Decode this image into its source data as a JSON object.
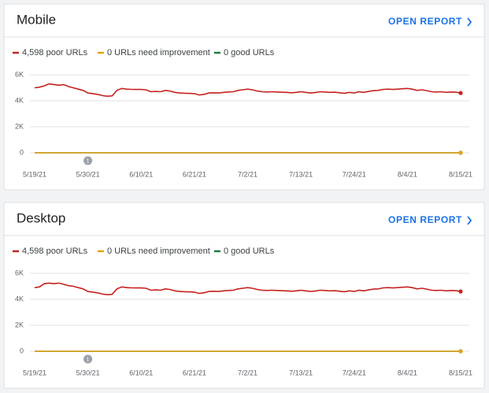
{
  "chart_data": [
    {
      "type": "line",
      "title": "Mobile",
      "link_text": "OPEN REPORT",
      "categories": [
        "5/19/21",
        null,
        null,
        null,
        null,
        null,
        null,
        null,
        null,
        null,
        null,
        "5/30/21",
        null,
        null,
        null,
        null,
        null,
        null,
        null,
        null,
        null,
        null,
        "6/10/21",
        null,
        null,
        null,
        null,
        null,
        null,
        null,
        null,
        null,
        null,
        "6/21/21",
        null,
        null,
        null,
        null,
        null,
        null,
        null,
        null,
        null,
        null,
        "7/2/21",
        null,
        null,
        null,
        null,
        null,
        null,
        null,
        null,
        null,
        null,
        "7/13/21",
        null,
        null,
        null,
        null,
        null,
        null,
        null,
        null,
        null,
        null,
        "7/24/21",
        null,
        null,
        null,
        null,
        null,
        null,
        null,
        null,
        null,
        null,
        "8/4/21",
        null,
        null,
        null,
        null,
        null,
        null,
        null,
        null,
        null,
        null,
        "8/15/21"
      ],
      "series": [
        {
          "name": "4,598 poor URLs",
          "color": "#c5221f",
          "values": [
            5000,
            5050,
            5150,
            5300,
            5250,
            5200,
            5250,
            5100,
            5000,
            4900,
            4800,
            4600,
            4550,
            4500,
            4400,
            4350,
            4380,
            4800,
            4950,
            4900,
            4880,
            4870,
            4870,
            4850,
            4700,
            4720,
            4700,
            4800,
            4750,
            4650,
            4600,
            4580,
            4570,
            4550,
            4450,
            4500,
            4600,
            4620,
            4600,
            4650,
            4680,
            4700,
            4800,
            4850,
            4900,
            4850,
            4750,
            4700,
            4680,
            4700,
            4680,
            4660,
            4650,
            4620,
            4650,
            4700,
            4650,
            4600,
            4640,
            4700,
            4680,
            4650,
            4660,
            4620,
            4580,
            4650,
            4600,
            4700,
            4650,
            4720,
            4780,
            4800,
            4880,
            4900,
            4870,
            4900,
            4930,
            4950,
            4900,
            4800,
            4850,
            4780,
            4700,
            4680,
            4700,
            4650,
            4680,
            4660,
            4598
          ]
        },
        {
          "name": "0 URLs need improvement",
          "color": "#e8a10f",
          "values": [
            0,
            0,
            0,
            0,
            0,
            0,
            0,
            0,
            0,
            0,
            0,
            0,
            0,
            0,
            0,
            0,
            0,
            0,
            0,
            0,
            0,
            0,
            0,
            0,
            0,
            0,
            0,
            0,
            0,
            0,
            0,
            0,
            0,
            0,
            0,
            0,
            0,
            0,
            0,
            0,
            0,
            0,
            0,
            0,
            0,
            0,
            0,
            0,
            0,
            0,
            0,
            0,
            0,
            0,
            0,
            0,
            0,
            0,
            0,
            0,
            0,
            0,
            0,
            0,
            0,
            0,
            0,
            0,
            0,
            0,
            0,
            0,
            0,
            0,
            0,
            0,
            0,
            0,
            0,
            0,
            0,
            0,
            0,
            0,
            0,
            0,
            0,
            0,
            0
          ]
        },
        {
          "name": "0 good URLs",
          "color": "#188038",
          "values": [
            0,
            0,
            0,
            0,
            0,
            0,
            0,
            0,
            0,
            0,
            0,
            0,
            0,
            0,
            0,
            0,
            0,
            0,
            0,
            0,
            0,
            0,
            0,
            0,
            0,
            0,
            0,
            0,
            0,
            0,
            0,
            0,
            0,
            0,
            0,
            0,
            0,
            0,
            0,
            0,
            0,
            0,
            0,
            0,
            0,
            0,
            0,
            0,
            0,
            0,
            0,
            0,
            0,
            0,
            0,
            0,
            0,
            0,
            0,
            0,
            0,
            0,
            0,
            0,
            0,
            0,
            0,
            0,
            0,
            0,
            0,
            0,
            0,
            0,
            0,
            0,
            0,
            0,
            0,
            0,
            0,
            0,
            0,
            0,
            0,
            0,
            0,
            0,
            0
          ]
        }
      ],
      "ylim": [
        0,
        6000
      ],
      "yticks": [
        0,
        {
          "value": 2000,
          "label": "2K"
        },
        {
          "value": 4000,
          "label": "4K"
        },
        {
          "value": 6000,
          "label": "6K"
        }
      ],
      "grid": true,
      "annotations": [
        {
          "x": "5/30/21",
          "label": "1"
        }
      ]
    },
    {
      "type": "line",
      "title": "Desktop",
      "link_text": "OPEN REPORT",
      "categories": [
        "5/19/21",
        null,
        null,
        null,
        null,
        null,
        null,
        null,
        null,
        null,
        null,
        "5/30/21",
        null,
        null,
        null,
        null,
        null,
        null,
        null,
        null,
        null,
        null,
        "6/10/21",
        null,
        null,
        null,
        null,
        null,
        null,
        null,
        null,
        null,
        null,
        "6/21/21",
        null,
        null,
        null,
        null,
        null,
        null,
        null,
        null,
        null,
        null,
        "7/2/21",
        null,
        null,
        null,
        null,
        null,
        null,
        null,
        null,
        null,
        null,
        "7/13/21",
        null,
        null,
        null,
        null,
        null,
        null,
        null,
        null,
        null,
        null,
        "7/24/21",
        null,
        null,
        null,
        null,
        null,
        null,
        null,
        null,
        null,
        null,
        "8/4/21",
        null,
        null,
        null,
        null,
        null,
        null,
        null,
        null,
        null,
        null,
        "8/15/21"
      ],
      "series": [
        {
          "name": "4,598 poor URLs",
          "color": "#c5221f",
          "values": [
            4900,
            4950,
            5200,
            5250,
            5200,
            5250,
            5150,
            5050,
            5000,
            4900,
            4800,
            4600,
            4550,
            4500,
            4400,
            4350,
            4380,
            4800,
            4950,
            4900,
            4880,
            4870,
            4870,
            4850,
            4700,
            4720,
            4700,
            4800,
            4750,
            4650,
            4600,
            4580,
            4570,
            4550,
            4450,
            4500,
            4600,
            4620,
            4600,
            4650,
            4680,
            4700,
            4800,
            4850,
            4900,
            4850,
            4750,
            4700,
            4680,
            4700,
            4680,
            4660,
            4650,
            4620,
            4650,
            4700,
            4650,
            4600,
            4640,
            4700,
            4680,
            4650,
            4660,
            4620,
            4580,
            4650,
            4600,
            4700,
            4650,
            4720,
            4780,
            4800,
            4880,
            4900,
            4870,
            4900,
            4930,
            4950,
            4900,
            4800,
            4850,
            4780,
            4700,
            4680,
            4700,
            4650,
            4680,
            4660,
            4598
          ]
        },
        {
          "name": "0 URLs need improvement",
          "color": "#e8a10f",
          "values": [
            0,
            0,
            0,
            0,
            0,
            0,
            0,
            0,
            0,
            0,
            0,
            0,
            0,
            0,
            0,
            0,
            0,
            0,
            0,
            0,
            0,
            0,
            0,
            0,
            0,
            0,
            0,
            0,
            0,
            0,
            0,
            0,
            0,
            0,
            0,
            0,
            0,
            0,
            0,
            0,
            0,
            0,
            0,
            0,
            0,
            0,
            0,
            0,
            0,
            0,
            0,
            0,
            0,
            0,
            0,
            0,
            0,
            0,
            0,
            0,
            0,
            0,
            0,
            0,
            0,
            0,
            0,
            0,
            0,
            0,
            0,
            0,
            0,
            0,
            0,
            0,
            0,
            0,
            0,
            0,
            0,
            0,
            0,
            0,
            0,
            0,
            0,
            0,
            0
          ]
        },
        {
          "name": "0 good URLs",
          "color": "#188038",
          "values": [
            0,
            0,
            0,
            0,
            0,
            0,
            0,
            0,
            0,
            0,
            0,
            0,
            0,
            0,
            0,
            0,
            0,
            0,
            0,
            0,
            0,
            0,
            0,
            0,
            0,
            0,
            0,
            0,
            0,
            0,
            0,
            0,
            0,
            0,
            0,
            0,
            0,
            0,
            0,
            0,
            0,
            0,
            0,
            0,
            0,
            0,
            0,
            0,
            0,
            0,
            0,
            0,
            0,
            0,
            0,
            0,
            0,
            0,
            0,
            0,
            0,
            0,
            0,
            0,
            0,
            0,
            0,
            0,
            0,
            0,
            0,
            0,
            0,
            0,
            0,
            0,
            0,
            0,
            0,
            0,
            0,
            0,
            0,
            0,
            0,
            0,
            0,
            0,
            0
          ]
        }
      ],
      "ylim": [
        0,
        6000
      ],
      "yticks": [
        0,
        {
          "value": 2000,
          "label": "2K"
        },
        {
          "value": 4000,
          "label": "4K"
        },
        {
          "value": 6000,
          "label": "6K"
        }
      ],
      "grid": true,
      "annotations": [
        {
          "x": "5/30/21",
          "label": "1"
        }
      ]
    }
  ]
}
